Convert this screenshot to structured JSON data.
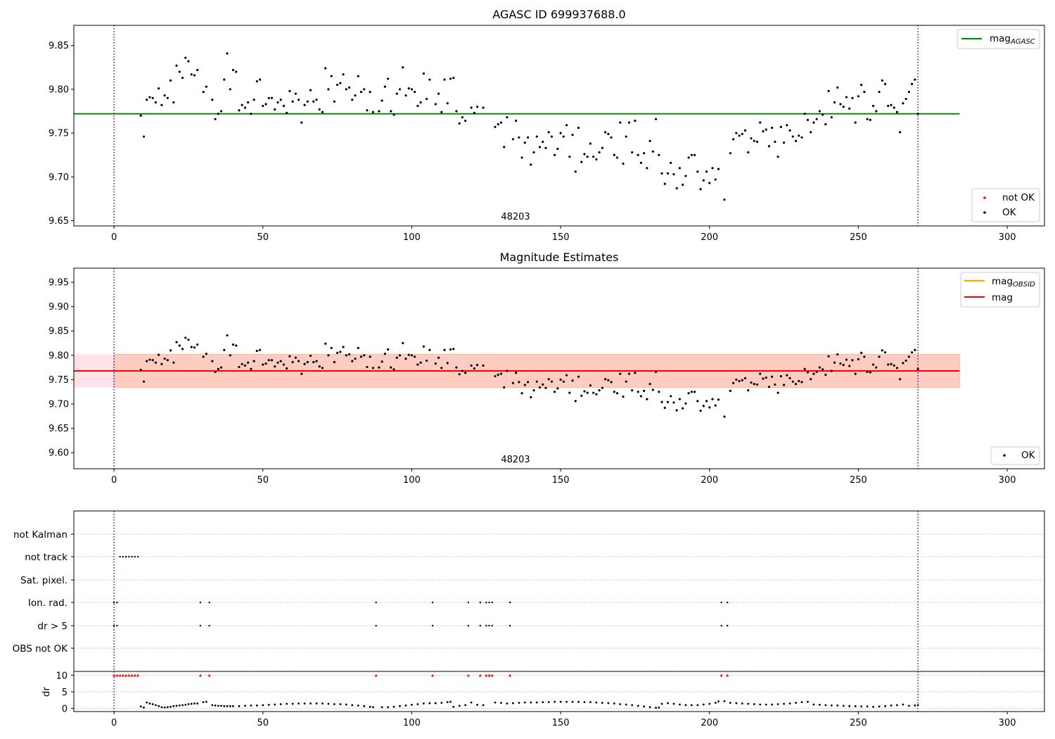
{
  "colors": {
    "ok": "#000000",
    "not_ok": "#ff0000",
    "agasc_line": "#008000",
    "obsid_line": "#ffa500",
    "mag_line": "#ff0000",
    "obsid_band": "#ffa07a",
    "mag_band": "#ffc0cb",
    "vline": "#800080",
    "grid": "#b0b0b0"
  },
  "chart_data": [
    {
      "type": "scatter",
      "title": "AGASC ID 699937688.0",
      "xlim": [
        -13.5,
        312.5
      ],
      "ylim": [
        9.644,
        9.873
      ],
      "xticks": [
        "0",
        "50",
        "100",
        "150",
        "200",
        "250",
        "300"
      ],
      "yticks": [
        "9.65",
        "9.70",
        "9.75",
        "9.80",
        "9.85"
      ],
      "vlines": [
        0,
        270
      ],
      "obsid_label": "48203",
      "agasc_mag": 9.772,
      "agasc_xrange": [
        -13.5,
        284
      ],
      "legend_lines": [
        {
          "label": "mag",
          "sub": "AGASC"
        }
      ],
      "legend_points": [
        {
          "label": "not OK"
        },
        {
          "label": "OK"
        }
      ]
    },
    {
      "type": "scatter",
      "title": "Magnitude Estimates",
      "xlim": [
        -13.5,
        312.5
      ],
      "ylim": [
        9.567,
        9.979
      ],
      "xticks": [
        "0",
        "50",
        "100",
        "150",
        "200",
        "250",
        "300"
      ],
      "yticks": [
        "9.60",
        "9.65",
        "9.70",
        "9.75",
        "9.80",
        "9.85",
        "9.90",
        "9.95"
      ],
      "vlines": [
        0,
        270
      ],
      "obsid_label": "48203",
      "mag": 9.768,
      "obsid_mag": 9.768,
      "mag_band": [
        9.734,
        9.802
      ],
      "obsid_band": [
        9.734,
        9.802
      ],
      "legend_lines": [
        {
          "label": "mag",
          "sub": "OBSID"
        },
        {
          "label": "mag",
          "sub": ""
        }
      ],
      "legend_points": [
        {
          "label": "OK"
        }
      ]
    },
    {
      "type": "scatter",
      "xlim": [
        -13.5,
        312.5
      ],
      "xticks": [
        "0",
        "50",
        "100",
        "150",
        "200",
        "250",
        "300"
      ],
      "vlines": [
        0,
        270
      ],
      "flag_categories": [
        "not Kalman",
        "not track",
        "Sat. pixel.",
        "Ion. rad.",
        "dr > 5",
        "OBS not OK"
      ],
      "flags": {
        "not track": [
          2,
          3,
          4,
          5,
          6,
          7,
          8
        ],
        "Ion. rad.": [
          0,
          1,
          29,
          32,
          88,
          107,
          119,
          123,
          125,
          126,
          127,
          133,
          204,
          206
        ],
        "dr > 5": [
          0,
          1,
          29,
          32,
          88,
          107,
          119,
          123,
          125,
          126,
          127,
          133,
          204,
          206
        ]
      },
      "dr_ylabel": "dr",
      "dr_ylim": [
        -0.5,
        10.5
      ],
      "dr_yticks": [
        "0",
        "5",
        "10"
      ],
      "dr_clipped": [
        0,
        1,
        2,
        3,
        4,
        5,
        6,
        7,
        8,
        29,
        32,
        88,
        107,
        119,
        123,
        125,
        126,
        127,
        133,
        204,
        206
      ],
      "dr_clip_value": 10,
      "dr": [
        [
          9,
          0.6
        ],
        [
          10,
          0.3
        ],
        [
          11,
          1.8
        ],
        [
          12,
          1.5
        ],
        [
          13,
          1.3
        ],
        [
          14,
          1.0
        ],
        [
          15,
          0.7
        ],
        [
          16,
          0.4
        ],
        [
          17,
          0.3
        ],
        [
          18,
          0.4
        ],
        [
          19,
          0.5
        ],
        [
          20,
          0.7
        ],
        [
          21,
          0.8
        ],
        [
          22,
          0.9
        ],
        [
          23,
          1.0
        ],
        [
          24,
          1.1
        ],
        [
          25,
          1.3
        ],
        [
          26,
          1.4
        ],
        [
          27,
          1.5
        ],
        [
          28,
          1.5
        ],
        [
          30,
          1.9
        ],
        [
          31,
          2.0
        ],
        [
          33,
          1.0
        ],
        [
          34,
          0.9
        ],
        [
          35,
          0.8
        ],
        [
          36,
          0.8
        ],
        [
          37,
          0.7
        ],
        [
          38,
          0.7
        ],
        [
          39,
          0.7
        ],
        [
          40,
          0.7
        ],
        [
          42,
          0.7
        ],
        [
          44,
          0.8
        ],
        [
          46,
          0.9
        ],
        [
          48,
          0.9
        ],
        [
          50,
          1.0
        ],
        [
          52,
          1.1
        ],
        [
          54,
          1.2
        ],
        [
          56,
          1.3
        ],
        [
          58,
          1.4
        ],
        [
          60,
          1.4
        ],
        [
          62,
          1.5
        ],
        [
          64,
          1.5
        ],
        [
          66,
          1.5
        ],
        [
          68,
          1.5
        ],
        [
          70,
          1.5
        ],
        [
          72,
          1.4
        ],
        [
          74,
          1.3
        ],
        [
          76,
          1.3
        ],
        [
          78,
          1.2
        ],
        [
          80,
          1.0
        ],
        [
          82,
          0.9
        ],
        [
          84,
          0.7
        ],
        [
          86,
          0.5
        ],
        [
          87,
          0.4
        ],
        [
          90,
          0.4
        ],
        [
          92,
          0.4
        ],
        [
          94,
          0.5
        ],
        [
          96,
          0.7
        ],
        [
          98,
          0.9
        ],
        [
          100,
          1.1
        ],
        [
          102,
          1.3
        ],
        [
          104,
          1.5
        ],
        [
          106,
          1.6
        ],
        [
          108,
          1.6
        ],
        [
          110,
          1.7
        ],
        [
          112,
          1.9
        ],
        [
          113,
          2.0
        ],
        [
          114,
          0.5
        ],
        [
          116,
          0.8
        ],
        [
          118,
          1.0
        ],
        [
          120,
          1.8
        ],
        [
          122,
          1.1
        ],
        [
          124,
          1.0
        ],
        [
          128,
          1.8
        ],
        [
          130,
          1.7
        ],
        [
          132,
          1.5
        ],
        [
          134,
          1.6
        ],
        [
          136,
          1.7
        ],
        [
          138,
          1.8
        ],
        [
          140,
          1.8
        ],
        [
          142,
          1.8
        ],
        [
          144,
          1.9
        ],
        [
          146,
          1.9
        ],
        [
          148,
          2.0
        ],
        [
          150,
          2.0
        ],
        [
          152,
          2.0
        ],
        [
          154,
          2.0
        ],
        [
          156,
          2.0
        ],
        [
          158,
          1.9
        ],
        [
          160,
          1.9
        ],
        [
          162,
          1.8
        ],
        [
          164,
          1.7
        ],
        [
          166,
          1.6
        ],
        [
          168,
          1.5
        ],
        [
          170,
          1.3
        ],
        [
          172,
          1.2
        ],
        [
          174,
          1.0
        ],
        [
          176,
          0.8
        ],
        [
          178,
          0.6
        ],
        [
          180,
          0.4
        ],
        [
          182,
          0.2
        ],
        [
          183,
          0.3
        ],
        [
          184,
          1.4
        ],
        [
          186,
          1.6
        ],
        [
          188,
          1.4
        ],
        [
          190,
          1.2
        ],
        [
          192,
          1.0
        ],
        [
          194,
          1.0
        ],
        [
          196,
          1.0
        ],
        [
          198,
          1.2
        ],
        [
          200,
          1.4
        ],
        [
          202,
          1.7
        ],
        [
          203,
          2.1
        ],
        [
          205,
          2.2
        ],
        [
          207,
          1.7
        ],
        [
          209,
          1.6
        ],
        [
          211,
          1.5
        ],
        [
          213,
          1.4
        ],
        [
          215,
          1.3
        ],
        [
          217,
          1.2
        ],
        [
          219,
          1.2
        ],
        [
          221,
          1.2
        ],
        [
          223,
          1.3
        ],
        [
          225,
          1.4
        ],
        [
          227,
          1.5
        ],
        [
          229,
          1.7
        ],
        [
          231,
          1.9
        ],
        [
          233,
          2.0
        ],
        [
          235,
          1.2
        ],
        [
          237,
          1.1
        ],
        [
          239,
          1.0
        ],
        [
          241,
          0.9
        ],
        [
          243,
          0.9
        ],
        [
          245,
          0.8
        ],
        [
          247,
          0.7
        ],
        [
          249,
          0.7
        ],
        [
          251,
          0.6
        ],
        [
          253,
          0.6
        ],
        [
          255,
          0.5
        ],
        [
          257,
          0.6
        ],
        [
          259,
          0.7
        ],
        [
          261,
          0.9
        ],
        [
          263,
          1.0
        ],
        [
          265,
          1.2
        ],
        [
          267,
          0.8
        ],
        [
          269,
          0.9
        ],
        [
          270,
          1.0
        ]
      ]
    }
  ],
  "mag_points": [
    [
      9,
      9.77
    ],
    [
      10,
      9.746
    ],
    [
      11,
      9.788
    ],
    [
      12,
      9.791
    ],
    [
      13,
      9.79
    ],
    [
      14,
      9.785
    ],
    [
      15,
      9.801
    ],
    [
      16,
      9.782
    ],
    [
      17,
      9.793
    ],
    [
      18,
      9.79
    ],
    [
      19,
      9.81
    ],
    [
      20,
      9.785
    ],
    [
      21,
      9.827
    ],
    [
      22,
      9.82
    ],
    [
      23,
      9.813
    ],
    [
      24,
      9.836
    ],
    [
      25,
      9.832
    ],
    [
      26,
      9.817
    ],
    [
      27,
      9.816
    ],
    [
      28,
      9.822
    ],
    [
      30,
      9.797
    ],
    [
      31,
      9.803
    ],
    [
      33,
      9.788
    ],
    [
      34,
      9.766
    ],
    [
      35,
      9.772
    ],
    [
      36,
      9.775
    ],
    [
      37,
      9.811
    ],
    [
      38,
      9.841
    ],
    [
      39,
      9.8
    ],
    [
      40,
      9.822
    ],
    [
      41,
      9.82
    ],
    [
      42,
      9.776
    ],
    [
      43,
      9.782
    ],
    [
      44,
      9.779
    ],
    [
      45,
      9.785
    ],
    [
      46,
      9.772
    ],
    [
      47,
      9.788
    ],
    [
      48,
      9.809
    ],
    [
      49,
      9.811
    ],
    [
      50,
      9.781
    ],
    [
      51,
      9.783
    ],
    [
      52,
      9.79
    ],
    [
      53,
      9.79
    ],
    [
      54,
      9.777
    ],
    [
      55,
      9.785
    ],
    [
      56,
      9.788
    ],
    [
      57,
      9.781
    ],
    [
      58,
      9.773
    ],
    [
      59,
      9.798
    ],
    [
      60,
      9.786
    ],
    [
      61,
      9.795
    ],
    [
      62,
      9.788
    ],
    [
      63,
      9.762
    ],
    [
      64,
      9.782
    ],
    [
      65,
      9.786
    ],
    [
      66,
      9.799
    ],
    [
      67,
      9.786
    ],
    [
      68,
      9.788
    ],
    [
      69,
      9.777
    ],
    [
      70,
      9.774
    ],
    [
      71,
      9.824
    ],
    [
      72,
      9.8
    ],
    [
      73,
      9.815
    ],
    [
      74,
      9.786
    ],
    [
      75,
      9.805
    ],
    [
      76,
      9.807
    ],
    [
      77,
      9.817
    ],
    [
      78,
      9.8
    ],
    [
      79,
      9.802
    ],
    [
      80,
      9.788
    ],
    [
      81,
      9.793
    ],
    [
      82,
      9.815
    ],
    [
      83,
      9.797
    ],
    [
      84,
      9.8
    ],
    [
      85,
      9.776
    ],
    [
      86,
      9.797
    ],
    [
      87,
      9.774
    ],
    [
      89,
      9.775
    ],
    [
      90,
      9.787
    ],
    [
      91,
      9.803
    ],
    [
      92,
      9.812
    ],
    [
      93,
      9.775
    ],
    [
      94,
      9.771
    ],
    [
      95,
      9.795
    ],
    [
      96,
      9.8
    ],
    [
      97,
      9.825
    ],
    [
      98,
      9.793
    ],
    [
      99,
      9.801
    ],
    [
      100,
      9.8
    ],
    [
      101,
      9.797
    ],
    [
      102,
      9.781
    ],
    [
      103,
      9.785
    ],
    [
      104,
      9.818
    ],
    [
      105,
      9.789
    ],
    [
      106,
      9.811
    ],
    [
      108,
      9.783
    ],
    [
      109,
      9.795
    ],
    [
      110,
      9.774
    ],
    [
      111,
      9.811
    ],
    [
      112,
      9.784
    ],
    [
      113,
      9.812
    ],
    [
      114,
      9.813
    ],
    [
      115,
      9.775
    ],
    [
      116,
      9.761
    ],
    [
      117,
      9.768
    ],
    [
      118,
      9.764
    ],
    [
      120,
      9.779
    ],
    [
      121,
      9.773
    ],
    [
      122,
      9.78
    ],
    [
      124,
      9.779
    ],
    [
      128,
      9.757
    ],
    [
      129,
      9.76
    ],
    [
      130,
      9.762
    ],
    [
      131,
      9.734
    ],
    [
      132,
      9.768
    ],
    [
      134,
      9.743
    ],
    [
      135,
      9.764
    ],
    [
      136,
      9.745
    ],
    [
      137,
      9.722
    ],
    [
      138,
      9.739
    ],
    [
      139,
      9.745
    ],
    [
      140,
      9.714
    ],
    [
      141,
      9.728
    ],
    [
      142,
      9.746
    ],
    [
      143,
      9.734
    ],
    [
      144,
      9.74
    ],
    [
      145,
      9.733
    ],
    [
      146,
      9.751
    ],
    [
      147,
      9.746
    ],
    [
      148,
      9.725
    ],
    [
      149,
      9.732
    ],
    [
      150,
      9.75
    ],
    [
      151,
      9.746
    ],
    [
      152,
      9.759
    ],
    [
      153,
      9.723
    ],
    [
      154,
      9.748
    ],
    [
      155,
      9.706
    ],
    [
      156,
      9.756
    ],
    [
      157,
      9.717
    ],
    [
      158,
      9.726
    ],
    [
      159,
      9.723
    ],
    [
      160,
      9.738
    ],
    [
      161,
      9.723
    ],
    [
      162,
      9.72
    ],
    [
      163,
      9.728
    ],
    [
      164,
      9.733
    ],
    [
      165,
      9.751
    ],
    [
      166,
      9.749
    ],
    [
      167,
      9.745
    ],
    [
      168,
      9.725
    ],
    [
      169,
      9.722
    ],
    [
      170,
      9.762
    ],
    [
      171,
      9.715
    ],
    [
      172,
      9.746
    ],
    [
      173,
      9.762
    ],
    [
      174,
      9.728
    ],
    [
      175,
      9.764
    ],
    [
      176,
      9.725
    ],
    [
      177,
      9.716
    ],
    [
      178,
      9.727
    ],
    [
      179,
      9.71
    ],
    [
      180,
      9.741
    ],
    [
      181,
      9.729
    ],
    [
      182,
      9.766
    ],
    [
      183,
      9.725
    ],
    [
      184,
      9.704
    ],
    [
      185,
      9.692
    ],
    [
      186,
      9.704
    ],
    [
      187,
      9.716
    ],
    [
      188,
      9.703
    ],
    [
      189,
      9.687
    ],
    [
      190,
      9.71
    ],
    [
      191,
      9.691
    ],
    [
      192,
      9.701
    ],
    [
      193,
      9.722
    ],
    [
      194,
      9.725
    ],
    [
      195,
      9.725
    ],
    [
      196,
      9.706
    ],
    [
      197,
      9.686
    ],
    [
      198,
      9.696
    ],
    [
      199,
      9.706
    ],
    [
      200,
      9.693
    ],
    [
      201,
      9.71
    ],
    [
      202,
      9.697
    ],
    [
      203,
      9.709
    ],
    [
      205,
      9.674
    ],
    [
      207,
      9.727
    ],
    [
      208,
      9.743
    ],
    [
      209,
      9.75
    ],
    [
      210,
      9.747
    ],
    [
      211,
      9.749
    ],
    [
      212,
      9.753
    ],
    [
      213,
      9.728
    ],
    [
      214,
      9.744
    ],
    [
      215,
      9.741
    ],
    [
      216,
      9.74
    ],
    [
      217,
      9.762
    ],
    [
      218,
      9.752
    ],
    [
      219,
      9.754
    ],
    [
      220,
      9.735
    ],
    [
      221,
      9.756
    ],
    [
      222,
      9.74
    ],
    [
      223,
      9.723
    ],
    [
      224,
      9.757
    ],
    [
      225,
      9.739
    ],
    [
      226,
      9.759
    ],
    [
      227,
      9.753
    ],
    [
      228,
      9.746
    ],
    [
      229,
      9.741
    ],
    [
      230,
      9.747
    ],
    [
      231,
      9.745
    ],
    [
      232,
      9.772
    ],
    [
      233,
      9.765
    ],
    [
      234,
      9.751
    ],
    [
      235,
      9.762
    ],
    [
      236,
      9.766
    ],
    [
      237,
      9.775
    ],
    [
      238,
      9.771
    ],
    [
      239,
      9.76
    ],
    [
      240,
      9.798
    ],
    [
      241,
      9.768
    ],
    [
      242,
      9.785
    ],
    [
      243,
      9.802
    ],
    [
      244,
      9.783
    ],
    [
      245,
      9.78
    ],
    [
      246,
      9.791
    ],
    [
      247,
      9.778
    ],
    [
      248,
      9.79
    ],
    [
      249,
      9.762
    ],
    [
      250,
      9.792
    ],
    [
      251,
      9.805
    ],
    [
      252,
      9.797
    ],
    [
      253,
      9.766
    ],
    [
      254,
      9.765
    ],
    [
      255,
      9.781
    ],
    [
      256,
      9.775
    ],
    [
      257,
      9.797
    ],
    [
      258,
      9.81
    ],
    [
      259,
      9.806
    ],
    [
      260,
      9.781
    ],
    [
      261,
      9.782
    ],
    [
      262,
      9.779
    ],
    [
      263,
      9.774
    ],
    [
      264,
      9.751
    ],
    [
      265,
      9.784
    ],
    [
      266,
      9.789
    ],
    [
      267,
      9.797
    ],
    [
      268,
      9.806
    ],
    [
      269,
      9.811
    ],
    [
      270,
      9.772
    ]
  ]
}
